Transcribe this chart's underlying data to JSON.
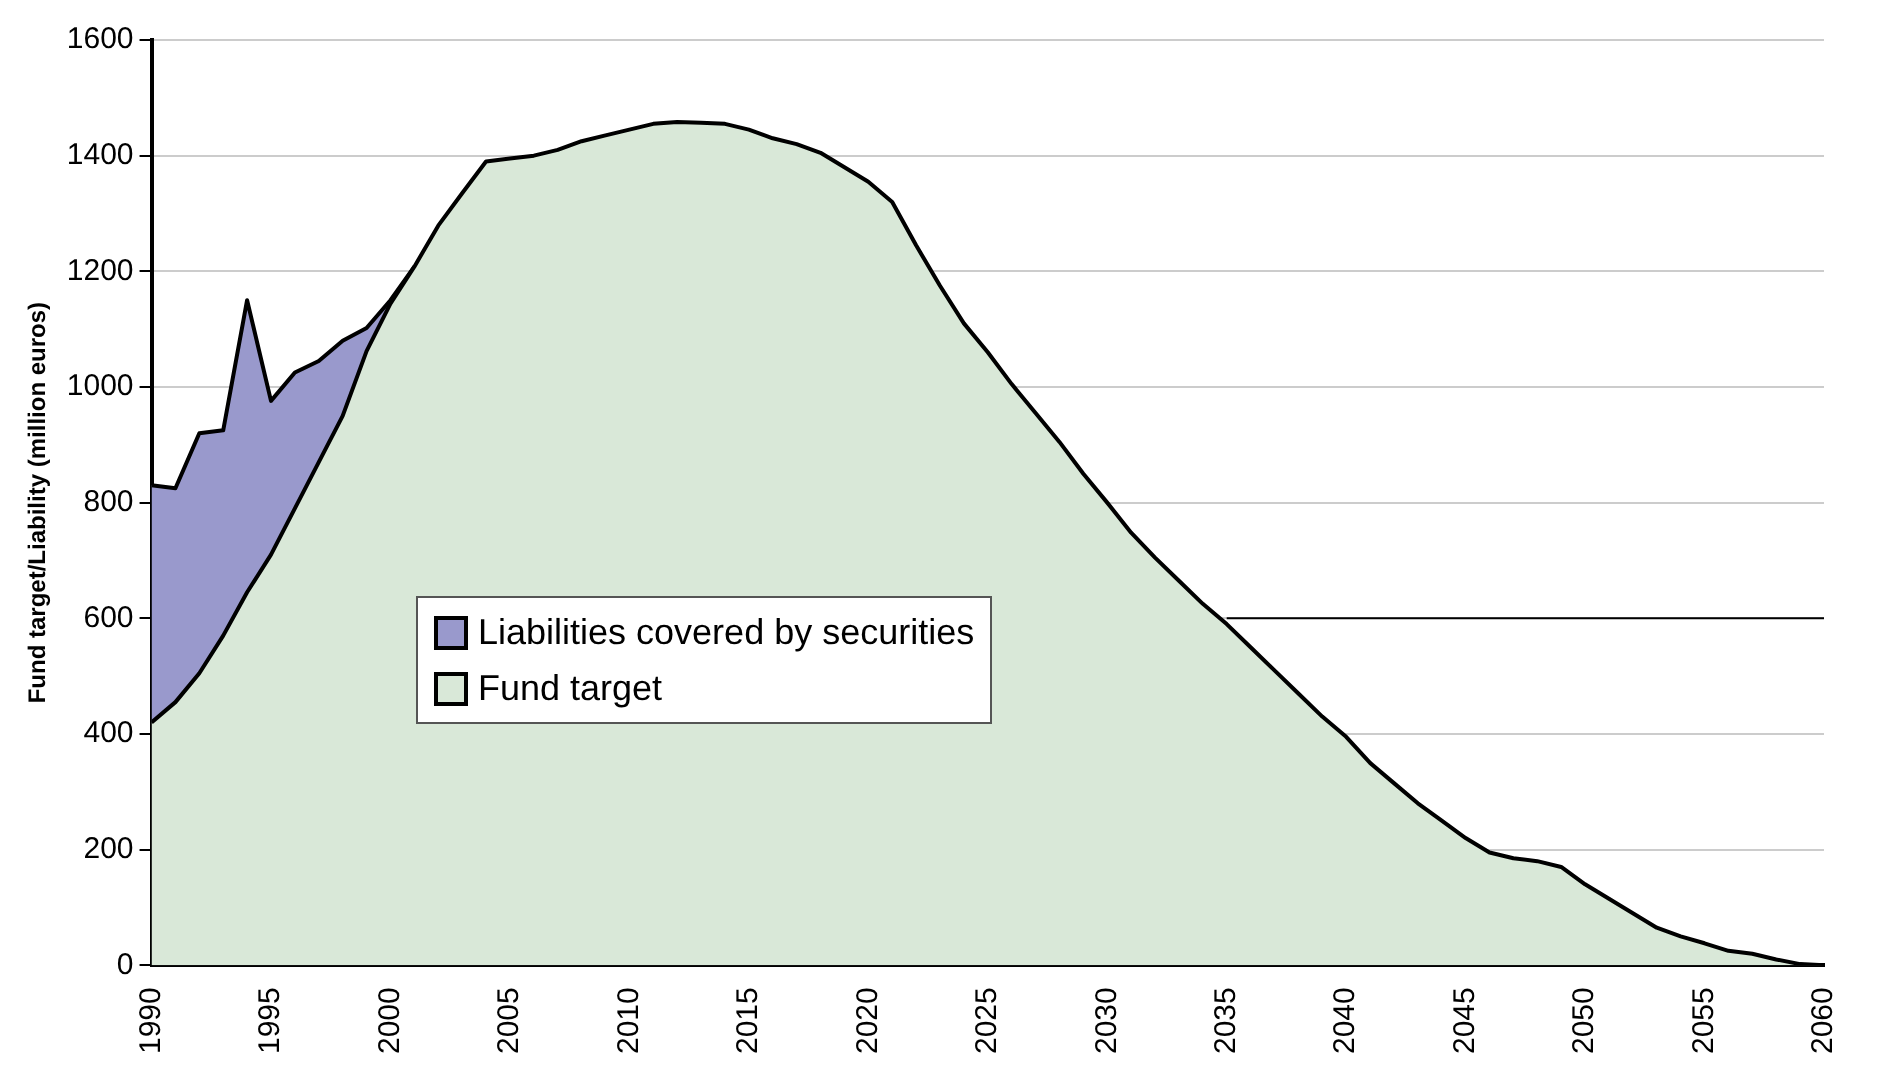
{
  "chart_data": {
    "type": "area",
    "ylabel": "Fund target/Liability (million euros)",
    "stacked": true,
    "x": [
      1990,
      1991,
      1992,
      1993,
      1994,
      1995,
      1996,
      1997,
      1998,
      1999,
      2000,
      2001,
      2002,
      2003,
      2004,
      2005,
      2006,
      2007,
      2008,
      2009,
      2010,
      2011,
      2012,
      2013,
      2014,
      2015,
      2016,
      2017,
      2018,
      2019,
      2020,
      2021,
      2022,
      2023,
      2024,
      2025,
      2026,
      2027,
      2028,
      2029,
      2030,
      2031,
      2032,
      2033,
      2034,
      2035,
      2036,
      2037,
      2038,
      2039,
      2040,
      2041,
      2042,
      2043,
      2044,
      2045,
      2046,
      2047,
      2048,
      2049,
      2050,
      2051,
      2052,
      2053,
      2054,
      2055,
      2056,
      2057,
      2058,
      2059,
      2060
    ],
    "series": [
      {
        "name": "Fund target",
        "color": "#d9e8d8",
        "values": [
          420,
          455,
          505,
          570,
          645,
          710,
          790,
          870,
          950,
          1062,
          1144,
          1208,
          1279,
          1335,
          1390,
          1395,
          1400,
          1410,
          1425,
          1435,
          1445,
          1455,
          1458,
          1457,
          1455,
          1445,
          1430,
          1420,
          1405,
          1380,
          1355,
          1320,
          1245,
          1175,
          1110,
          1060,
          1005,
          955,
          905,
          850,
          800,
          748,
          705,
          665,
          625,
          590,
          550,
          510,
          470,
          430,
          395,
          350,
          315,
          280,
          250,
          220,
          195,
          185,
          180,
          170,
          140,
          115,
          90,
          65,
          50,
          38,
          25,
          20,
          10,
          2,
          0
        ]
      },
      {
        "name": "Liabilities covered by securities",
        "color": "#9999cc",
        "values": [
          410,
          370,
          415,
          355,
          505,
          266,
          235,
          175,
          130,
          40,
          6,
          0,
          null,
          null,
          null,
          null,
          null,
          null,
          null,
          null,
          null,
          null,
          null,
          null,
          null,
          null,
          null,
          null,
          null,
          null,
          null,
          null,
          null,
          null,
          null,
          null,
          null,
          null,
          null,
          null,
          null,
          null,
          null,
          null,
          null,
          null,
          null,
          null,
          null,
          null,
          null,
          null,
          null,
          null,
          null,
          null,
          null,
          null,
          null,
          null,
          null,
          null,
          null,
          null,
          null,
          null,
          null,
          null,
          null,
          null,
          null
        ]
      },
      {
        "type": "line",
        "color": "#000000",
        "x": [
          2035,
          2060
        ],
        "values": [
          600,
          600
        ]
      }
    ],
    "xlim": [
      1990,
      2060
    ],
    "xticks": [
      1990,
      1995,
      2000,
      2005,
      2010,
      2015,
      2020,
      2025,
      2030,
      2035,
      2040,
      2045,
      2050,
      2055,
      2060
    ],
    "ylim": [
      0,
      1600
    ],
    "yticks": [
      0,
      200,
      400,
      600,
      800,
      1000,
      1200,
      1400,
      1600
    ],
    "grid": "y",
    "legend": "left",
    "marker": "none"
  }
}
